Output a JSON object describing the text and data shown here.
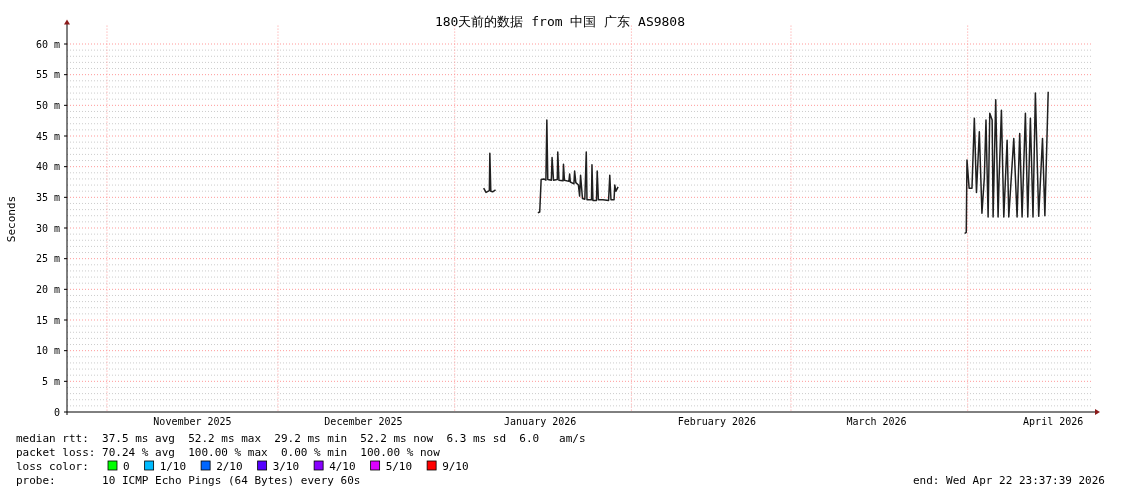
{
  "chart_data": {
    "type": "line",
    "title": "180天前的数据 from 中国 广东 AS9808",
    "ylabel": "Seconds",
    "xlim": [
      "2025-10-24T23:37",
      "2026-04-22T23:37"
    ],
    "xticks": [
      {
        "value": "2025-11-16",
        "label": "November 2025"
      },
      {
        "value": "2025-12-16",
        "label": "December 2025"
      },
      {
        "value": "2026-01-16",
        "label": "January 2026"
      },
      {
        "value": "2026-02-16",
        "label": "February 2026"
      },
      {
        "value": "2026-03-16",
        "label": "March 2026"
      },
      {
        "value": "2026-04-16",
        "label": "April 2026"
      }
    ],
    "ylim": [
      0,
      63
    ],
    "yticks": [
      0,
      {
        "value": 5,
        "label": "5 m"
      },
      {
        "value": 10,
        "label": "10 m"
      },
      {
        "value": 15,
        "label": "15 m"
      },
      {
        "value": 20,
        "label": "20 m"
      },
      {
        "value": 25,
        "label": "25 m"
      },
      {
        "value": 30,
        "label": "30 m"
      },
      {
        "value": 35,
        "label": "35 m"
      },
      {
        "value": 40,
        "label": "40 m"
      },
      {
        "value": 45,
        "label": "45 m"
      },
      {
        "value": 50,
        "label": "50 m"
      },
      {
        "value": 55,
        "label": "55 m"
      },
      {
        "value": 60,
        "label": "60 m"
      }
    ],
    "grid": true,
    "marker": "none",
    "line_style": "solid",
    "ref_lines": [
      {
        "axis": "x",
        "value": "2025-11-01",
        "color": "#ff9999",
        "line_style": "dotted"
      },
      {
        "axis": "x",
        "value": "2025-12-01",
        "color": "#ff9999",
        "line_style": "dotted"
      },
      {
        "axis": "x",
        "value": "2026-01-01",
        "color": "#ff9999",
        "line_style": "dotted"
      },
      {
        "axis": "x",
        "value": "2026-02-01",
        "color": "#ff9999",
        "line_style": "dotted"
      },
      {
        "axis": "x",
        "value": "2026-03-01",
        "color": "#ff9999",
        "line_style": "dotted"
      },
      {
        "axis": "x",
        "value": "2026-04-01",
        "color": "#ff9999",
        "line_style": "dotted"
      }
    ],
    "series": [
      {
        "color": "#202020",
        "x": [
          "2026-01-06T02:00",
          "2026-01-06T12:00",
          "2026-01-07T02:00",
          "2026-01-07T04:00",
          "2026-01-07T08:00",
          "2026-01-07T16:00",
          "2026-01-08T04:00",
          "2026-01-11T00:00",
          "2026-01-15T14:00",
          "2026-01-15T22:00",
          "2026-01-16T04:00",
          "2026-01-16T15:00",
          "2026-01-17T00:00",
          "2026-01-17T04:00",
          "2026-01-17T08:00",
          "2026-01-17T23:00",
          "2026-01-18T02:00",
          "2026-01-18T08:00",
          "2026-01-19T00:00",
          "2026-01-19T02:00",
          "2026-01-19T07:00",
          "2026-01-20T00:00",
          "2026-01-20T02:00",
          "2026-01-20T06:00",
          "2026-01-21T01:00",
          "2026-01-21T04:00",
          "2026-01-21T07:00",
          "2026-01-21T22:00",
          "2026-01-22T01:00",
          "2026-01-22T06:00",
          "2026-01-22T17:00",
          "2026-01-22T22:00",
          "2026-01-23T02:00",
          "2026-01-23T10:00",
          "2026-01-23T20:00",
          "2026-01-24T02:00",
          "2026-01-24T05:00",
          "2026-01-25T00:00",
          "2026-01-25T02:00",
          "2026-01-25T06:00",
          "2026-01-25T21:00",
          "2026-01-26T00:00",
          "2026-01-26T05:00",
          "2026-01-27T00:00",
          "2026-01-28T00:00",
          "2026-01-28T05:00",
          "2026-01-28T10:00",
          "2026-01-28T23:00",
          "2026-01-29T02:00",
          "2026-01-29T07:00",
          "2026-01-29T16:00",
          "2026-02-15T00:00",
          "2026-03-31T11:00",
          "2026-03-31T18:00",
          "2026-03-31T21:00",
          "2026-04-01T06:00",
          "2026-04-01T18:00",
          "2026-04-02T04:00",
          "2026-04-02T13:00",
          "2026-04-03T01:00",
          "2026-04-03T12:00",
          "2026-04-03T22:00",
          "2026-04-04T05:00",
          "2026-04-04T14:00",
          "2026-04-04T21:00",
          "2026-04-05T07:00",
          "2026-04-05T11:00",
          "2026-04-05T22:00",
          "2026-04-06T08:00",
          "2026-04-06T12:00",
          "2026-04-06T22:00",
          "2026-04-07T08:00",
          "2026-04-07T22:00",
          "2026-04-08T05:00",
          "2026-04-09T02:00",
          "2026-04-09T16:00",
          "2026-04-10T03:00",
          "2026-04-10T13:00",
          "2026-04-11T03:00",
          "2026-04-11T13:00",
          "2026-04-12T00:00",
          "2026-04-12T11:00",
          "2026-04-12T21:00",
          "2026-04-13T11:00",
          "2026-04-14T03:00",
          "2026-04-14T13:00",
          "2026-04-15T03:00"
        ],
        "values": [
          36.5,
          35.8,
          36.1,
          42.2,
          36,
          35.9,
          36.2,
          null,
          32.5,
          32.6,
          37.9,
          38,
          37.8,
          47.6,
          37.9,
          37.8,
          41.5,
          37.8,
          37.9,
          42.4,
          37.8,
          37.7,
          40.4,
          37.8,
          37.6,
          38.8,
          37.5,
          37.2,
          39.3,
          37.4,
          37,
          35.2,
          38.6,
          34.8,
          34.7,
          42.4,
          34.6,
          34.6,
          40.3,
          34.5,
          34.5,
          39.3,
          34.6,
          34.6,
          34.5,
          38.6,
          34.6,
          34.6,
          37,
          36,
          36.7,
          null,
          29.1,
          29.3,
          41.1,
          36.5,
          36.5,
          47.9,
          35.8,
          45.7,
          32.4,
          38.2,
          47.6,
          31.8,
          48.7,
          47.6,
          31.8,
          50.9,
          31.8,
          37.8,
          49.2,
          31.8,
          44.3,
          31.8,
          44.6,
          31.8,
          45.4,
          31.8,
          48.7,
          31.8,
          47.9,
          31.8,
          52,
          31.9,
          44.6,
          32,
          52.2
        ]
      }
    ],
    "annotations": [
      "median rtt:  37.5 ms avg  52.2 ms max  29.2 ms min  52.2 ms now  6.3 ms sd  6.0   am/s",
      "packet loss: 70.24 % avg  100.00 % max  0.00 % min  100.00 % now",
      "loss color:",
      "0",
      "1/10",
      "2/10",
      "3/10",
      "4/10",
      "5/10",
      "9/10",
      "probe:       10 ICMP Echo Pings (64 Bytes) every 60s",
      "end: Wed Apr 22 23:37:39 2026"
    ]
  }
}
